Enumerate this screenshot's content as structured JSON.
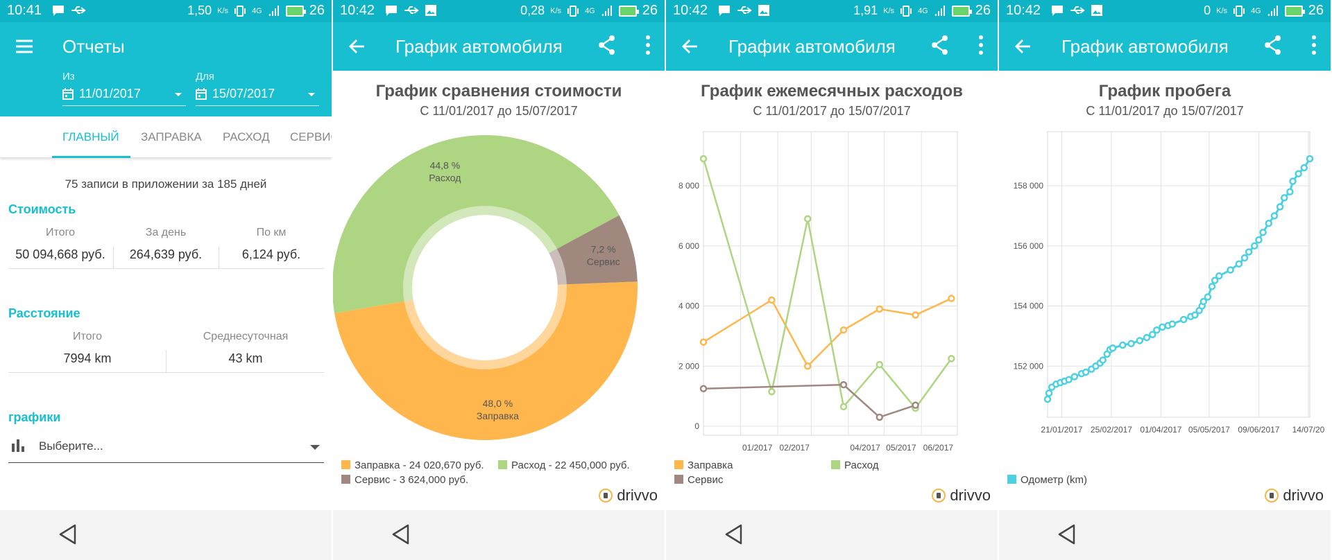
{
  "screens": [
    {
      "status": {
        "time": "10:41",
        "net": "1,50",
        "net_unit": "K/s",
        "net_type": "4G",
        "level": "26"
      },
      "appbar": {
        "title": "Отчеты"
      },
      "dates": {
        "from_label": "Из",
        "from_value": "11/01/2017",
        "to_label": "Для",
        "to_value": "15/07/2017"
      },
      "tabs": [
        "ГЛАВНЫЙ",
        "ЗАПРАВКА",
        "РАСХОД",
        "СЕРВИС"
      ],
      "summary": "75 записи в приложении за 185 дней",
      "cost": {
        "title": "Стоимость",
        "items": [
          {
            "label": "Итого",
            "value": "50 094,668 руб."
          },
          {
            "label": "За день",
            "value": "264,639 руб."
          },
          {
            "label": "По км",
            "value": "6,124 руб."
          }
        ]
      },
      "distance": {
        "title": "Расстояние",
        "items": [
          {
            "label": "Итого",
            "value": "7994 km"
          },
          {
            "label": "Среднесуточная",
            "value": "43 km"
          }
        ]
      },
      "charts": {
        "title": "графики",
        "select_placeholder": "Выберите..."
      }
    },
    {
      "status": {
        "time": "10:42",
        "net": "0,28",
        "net_unit": "K/s",
        "net_type": "4G",
        "level": "26"
      },
      "appbar": {
        "title": "График автомобиля"
      },
      "title": "График сравнения стоимости",
      "subtitle": "С 11/01/2017 до 15/07/2017",
      "legend": [
        "Заправка - 24 020,670 руб.",
        "Расход - 22 450,000 руб.",
        "Сервис - 3 624,000 руб."
      ],
      "slice_labels": [
        {
          "pct": "48,0 %",
          "name": "Заправка"
        },
        {
          "pct": "44,8 %",
          "name": "Расход"
        },
        {
          "pct": "7,2 %",
          "name": "Сервис"
        }
      ]
    },
    {
      "status": {
        "time": "10:42",
        "net": "1,91",
        "net_unit": "K/s",
        "net_type": "4G",
        "level": "26"
      },
      "appbar": {
        "title": "График автомобиля"
      },
      "title": "График ежемесячных расходов",
      "subtitle": "С 11/01/2017 до 15/07/2017",
      "legend": [
        "Заправка",
        "Расход",
        "Сервис"
      ]
    },
    {
      "status": {
        "time": "10:42",
        "net": "0",
        "net_unit": "K/s",
        "net_type": "4G",
        "level": "26"
      },
      "appbar": {
        "title": "График автомобиля"
      },
      "title": "График пробега",
      "subtitle": "С 11/01/2017 до 15/07/2017",
      "legend": [
        "Одометр (km)"
      ]
    }
  ],
  "brand": "drivvo",
  "colors": {
    "primary": "#17bfd1",
    "status": "#0fb3c6",
    "fuel": "#ffb74d",
    "expense": "#aed581",
    "service": "#a1887f",
    "odometer": "#4dd0e1"
  },
  "chart_data": [
    {
      "type": "pie",
      "title": "График сравнения стоимости",
      "subtitle": "С 11/01/2017 до 15/07/2017",
      "categories": [
        "Заправка",
        "Расход",
        "Сервис"
      ],
      "values": [
        24020.67,
        22450.0,
        3624.0
      ],
      "percents": [
        48.0,
        44.8,
        7.2
      ],
      "legend_position": "bottom"
    },
    {
      "type": "line",
      "title": "График ежемесячных расходов",
      "subtitle": "С 11/01/2017 до 15/07/2017",
      "x_ticks": [
        "01/2017",
        "02/2017",
        "04/2017",
        "05/2017",
        "06/2017"
      ],
      "y_ticks": [
        "0",
        "2 000",
        "4 000",
        "6 000",
        "8 000"
      ],
      "ylim": [
        -300,
        9800
      ],
      "xlim": [
        "2016-12-01",
        "2017-07-01"
      ],
      "series": [
        {
          "name": "Заправка",
          "points": [
            [
              "2016-12-01",
              2800
            ],
            [
              "2017-01-27",
              4200
            ],
            [
              "2017-02-26",
              2000
            ],
            [
              "2017-03-28",
              3200
            ],
            [
              "2017-04-27",
              3900
            ],
            [
              "2017-05-27",
              3700
            ],
            [
              "2017-06-26",
              4250
            ]
          ]
        },
        {
          "name": "Расход",
          "points": [
            [
              "2016-12-01",
              8900
            ],
            [
              "2017-01-27",
              1150
            ],
            [
              "2017-02-26",
              6900
            ],
            [
              "2017-03-28",
              650
            ],
            [
              "2017-04-27",
              2050
            ],
            [
              "2017-05-27",
              600
            ],
            [
              "2017-06-26",
              2250
            ]
          ]
        },
        {
          "name": "Сервис",
          "points": [
            [
              "2016-12-01",
              1250
            ],
            [
              "2017-03-28",
              1380
            ],
            [
              "2017-04-27",
              300
            ],
            [
              "2017-05-27",
              700
            ]
          ]
        }
      ],
      "grid": true,
      "legend_position": "bottom"
    },
    {
      "type": "line",
      "title": "График пробега",
      "subtitle": "С 11/01/2017 до 15/07/2017",
      "x_ticks": [
        "21/01/2017",
        "25/02/2017",
        "01/04/2017",
        "05/05/2017",
        "09/06/2017",
        "14/07/20"
      ],
      "y_ticks": [
        "152 000",
        "154 000",
        "156 000",
        "158 000"
      ],
      "ylim": [
        150300,
        159800
      ],
      "xlim": [
        "2017-01-11",
        "2017-07-15"
      ],
      "series": [
        {
          "name": "Одометр (km)",
          "points": [
            [
              "2017-01-11",
              150900
            ],
            [
              "2017-01-12",
              151100
            ],
            [
              "2017-01-14",
              151300
            ],
            [
              "2017-01-17",
              151400
            ],
            [
              "2017-01-20",
              151450
            ],
            [
              "2017-01-23",
              151500
            ],
            [
              "2017-01-26",
              151550
            ],
            [
              "2017-01-30",
              151650
            ],
            [
              "2017-02-04",
              151750
            ],
            [
              "2017-02-07",
              151800
            ],
            [
              "2017-02-11",
              151900
            ],
            [
              "2017-02-14",
              152000
            ],
            [
              "2017-02-17",
              152100
            ],
            [
              "2017-02-19",
              152200
            ],
            [
              "2017-02-22",
              152400
            ],
            [
              "2017-02-24",
              152550
            ],
            [
              "2017-02-26",
              152600
            ],
            [
              "2017-03-05",
              152700
            ],
            [
              "2017-03-11",
              152750
            ],
            [
              "2017-03-17",
              152850
            ],
            [
              "2017-03-22",
              152950
            ],
            [
              "2017-03-26",
              153050
            ],
            [
              "2017-03-29",
              153200
            ],
            [
              "2017-04-02",
              153300
            ],
            [
              "2017-04-06",
              153350
            ],
            [
              "2017-04-09",
              153400
            ],
            [
              "2017-04-17",
              153550
            ],
            [
              "2017-04-22",
              153650
            ],
            [
              "2017-04-25",
              153700
            ],
            [
              "2017-04-28",
              153850
            ],
            [
              "2017-04-30",
              154000
            ],
            [
              "2017-05-01",
              154150
            ],
            [
              "2017-05-04",
              154300
            ],
            [
              "2017-05-07",
              154650
            ],
            [
              "2017-05-09",
              154850
            ],
            [
              "2017-05-12",
              155000
            ],
            [
              "2017-05-20",
              155200
            ],
            [
              "2017-05-26",
              155400
            ],
            [
              "2017-05-30",
              155600
            ],
            [
              "2017-06-02",
              155800
            ],
            [
              "2017-06-06",
              156000
            ],
            [
              "2017-06-09",
              156200
            ],
            [
              "2017-06-12",
              156450
            ],
            [
              "2017-06-16",
              156750
            ],
            [
              "2017-06-20",
              157000
            ],
            [
              "2017-06-24",
              157300
            ],
            [
              "2017-06-27",
              157600
            ],
            [
              "2017-07-01",
              157800
            ],
            [
              "2017-07-03",
              158150
            ],
            [
              "2017-07-07",
              158400
            ],
            [
              "2017-07-11",
              158600
            ],
            [
              "2017-07-15",
              158900
            ]
          ]
        }
      ],
      "grid": true,
      "legend_position": "bottom"
    }
  ]
}
